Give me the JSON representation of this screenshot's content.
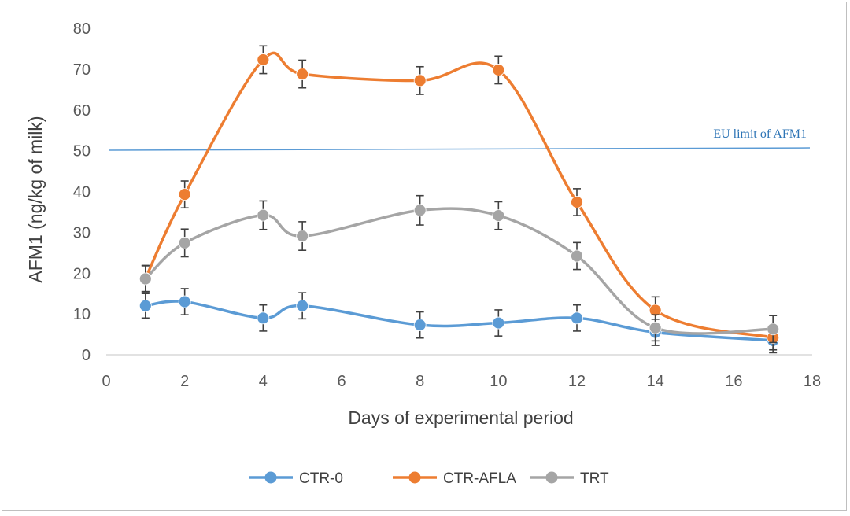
{
  "chart_data": {
    "type": "line",
    "xlabel": "Days of experimental period",
    "ylabel": "AFM1 (ng/kg of milk)",
    "xlim": [
      0,
      18
    ],
    "ylim": [
      0,
      80
    ],
    "xticks": [
      0,
      2,
      4,
      6,
      8,
      10,
      12,
      14,
      16,
      18
    ],
    "yticks": [
      0,
      10,
      20,
      30,
      40,
      50,
      60,
      70,
      80
    ],
    "grid": false,
    "smooth": true,
    "legend_position": "bottom",
    "reference_line": {
      "y": 50.5,
      "label": "EU limit  of AFM1",
      "color": "#5b9bd5"
    },
    "series": [
      {
        "name": "CTR-0",
        "color": "#5b9bd5",
        "x": [
          1,
          2,
          4,
          5,
          8,
          10,
          12,
          14,
          17
        ],
        "values": [
          12,
          13,
          9,
          12,
          7.3,
          7.8,
          9,
          5.5,
          3.5
        ],
        "error": [
          3,
          3.2,
          3.2,
          3.2,
          3.2,
          3.2,
          3.2,
          3.2,
          3
        ]
      },
      {
        "name": "CTR-AFLA",
        "color": "#ed7d31",
        "x": [
          1,
          2,
          4,
          5,
          8,
          10,
          12,
          14,
          17
        ],
        "values": [
          18.7,
          39.3,
          72.3,
          68.8,
          67.2,
          69.8,
          37.4,
          10.9,
          4.2
        ],
        "error": [
          3.2,
          3.3,
          3.4,
          3.4,
          3.4,
          3.4,
          3.3,
          3.3,
          3
        ]
      },
      {
        "name": "TRT",
        "color": "#a5a5a5",
        "x": [
          1,
          2,
          4,
          5,
          8,
          10,
          12,
          14,
          17
        ],
        "values": [
          18.6,
          27.4,
          34.2,
          29.1,
          35.4,
          34.1,
          24.2,
          6.6,
          6.3
        ],
        "error": [
          3.2,
          3.4,
          3.5,
          3.5,
          3.6,
          3.4,
          3.3,
          3.2,
          3.3
        ]
      }
    ]
  }
}
